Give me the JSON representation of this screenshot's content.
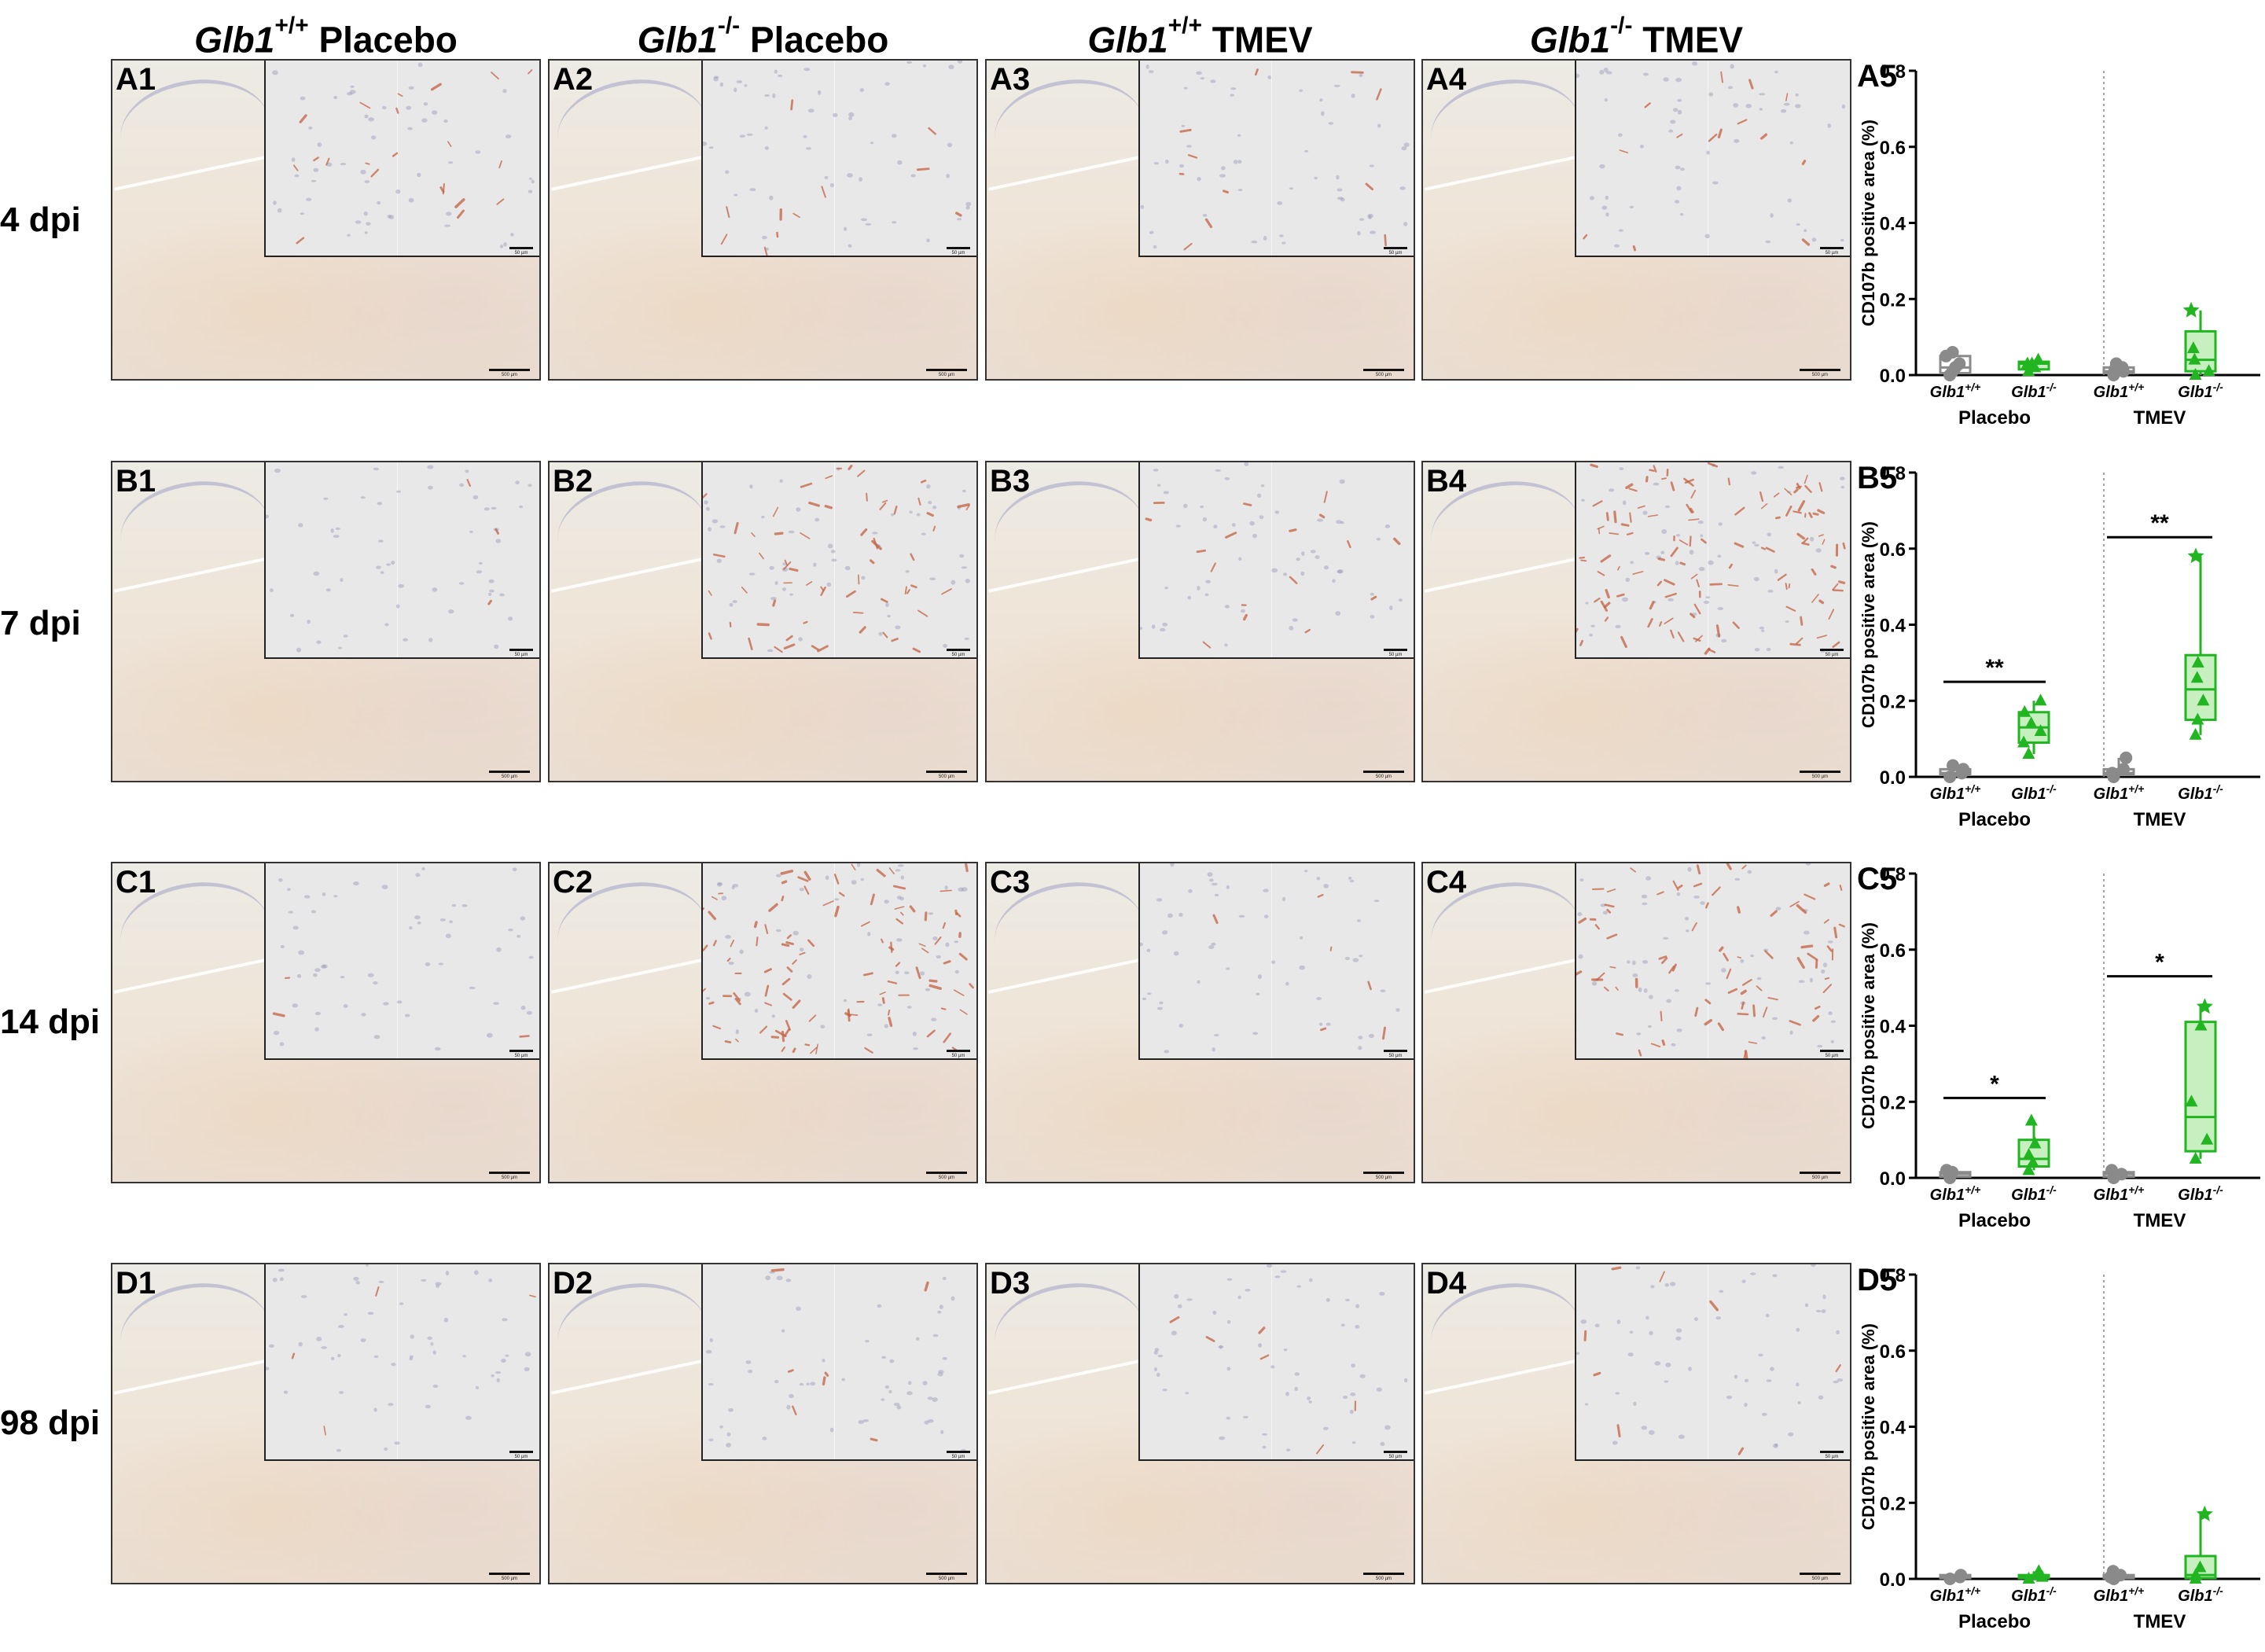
{
  "columns": [
    {
      "gene": "Glb1",
      "genotype": "+/+",
      "group": "Placebo"
    },
    {
      "gene": "Glb1",
      "genotype": "-/-",
      "group": "Placebo"
    },
    {
      "gene": "Glb1",
      "genotype": "+/+",
      "group": "TMEV"
    },
    {
      "gene": "Glb1",
      "genotype": "-/-",
      "group": "TMEV"
    }
  ],
  "rows": [
    {
      "label": "4 dpi",
      "panels": [
        "A1",
        "A2",
        "A3",
        "A4"
      ],
      "chart_label": "A5"
    },
    {
      "label": "7 dpi",
      "panels": [
        "B1",
        "B2",
        "B3",
        "B4"
      ],
      "chart_label": "B5"
    },
    {
      "label": "14 dpi",
      "panels": [
        "C1",
        "C2",
        "C3",
        "C4"
      ],
      "chart_label": "C5"
    },
    {
      "label": "98 dpi",
      "panels": [
        "D1",
        "D2",
        "D3",
        "D4"
      ],
      "chart_label": "D5"
    }
  ],
  "scale_bars": {
    "overview": "500 µm",
    "inset": "50 µm"
  },
  "stain_intensity": [
    [
      0.15,
      0.08,
      0.08,
      0.1
    ],
    [
      0.02,
      0.45,
      0.12,
      0.85
    ],
    [
      0.02,
      0.75,
      0.04,
      0.55
    ],
    [
      0.03,
      0.05,
      0.04,
      0.06
    ]
  ],
  "colors": {
    "wildtype": "#8a8a8a",
    "knockout": "#22b522",
    "knockout_fill": "#c7efc0"
  },
  "chart_data": [
    {
      "type": "box",
      "label": "A5",
      "ylabel": "CD107b positive area (%)",
      "ylim": [
        0,
        0.8
      ],
      "yticks": [
        0.0,
        0.2,
        0.4,
        0.6,
        0.8
      ],
      "groups": [
        "Placebo",
        "TMEV"
      ],
      "categories": [
        "Glb1+/+",
        "Glb1-/-",
        "Glb1+/+",
        "Glb1-/-"
      ],
      "series": [
        {
          "group": "Placebo",
          "genotype": "Glb1+/+",
          "min": 0.0,
          "q1": 0.005,
          "median": 0.02,
          "q3": 0.05,
          "max": 0.06,
          "points": [
            0.0,
            0.01,
            0.02,
            0.03,
            0.05,
            0.06
          ]
        },
        {
          "group": "Placebo",
          "genotype": "Glb1-/-",
          "min": 0.01,
          "q1": 0.015,
          "median": 0.03,
          "q3": 0.035,
          "max": 0.04,
          "points": [
            0.01,
            0.02,
            0.03,
            0.03,
            0.04
          ]
        },
        {
          "group": "TMEV",
          "genotype": "Glb1+/+",
          "min": 0.0,
          "q1": 0.005,
          "median": 0.01,
          "q3": 0.02,
          "max": 0.03,
          "points": [
            0.0,
            0.01,
            0.015,
            0.02,
            0.03
          ]
        },
        {
          "group": "TMEV",
          "genotype": "Glb1-/-",
          "min": 0.0,
          "q1": 0.01,
          "median": 0.04,
          "q3": 0.115,
          "max": 0.17,
          "points": [
            0.0,
            0.01,
            0.04,
            0.07,
            0.17
          ]
        }
      ],
      "significance": []
    },
    {
      "type": "box",
      "label": "B5",
      "ylabel": "CD107b positive area (%)",
      "ylim": [
        0,
        0.8
      ],
      "yticks": [
        0.0,
        0.2,
        0.4,
        0.6,
        0.8
      ],
      "groups": [
        "Placebo",
        "TMEV"
      ],
      "categories": [
        "Glb1+/+",
        "Glb1-/-",
        "Glb1+/+",
        "Glb1-/-"
      ],
      "series": [
        {
          "group": "Placebo",
          "genotype": "Glb1+/+",
          "min": 0.0,
          "q1": 0.005,
          "median": 0.01,
          "q3": 0.02,
          "max": 0.03,
          "points": [
            0.0,
            0.01,
            0.015,
            0.02,
            0.03
          ]
        },
        {
          "group": "Placebo",
          "genotype": "Glb1-/-",
          "min": 0.06,
          "q1": 0.09,
          "median": 0.13,
          "q3": 0.17,
          "max": 0.2,
          "points": [
            0.06,
            0.09,
            0.12,
            0.14,
            0.17,
            0.2
          ]
        },
        {
          "group": "TMEV",
          "genotype": "Glb1+/+",
          "min": 0.0,
          "q1": 0.005,
          "median": 0.01,
          "q3": 0.02,
          "max": 0.05,
          "points": [
            0.0,
            0.01,
            0.02,
            0.05
          ]
        },
        {
          "group": "TMEV",
          "genotype": "Glb1-/-",
          "min": 0.11,
          "q1": 0.15,
          "median": 0.23,
          "q3": 0.32,
          "max": 0.58,
          "points": [
            0.11,
            0.15,
            0.2,
            0.26,
            0.3,
            0.58
          ]
        }
      ],
      "significance": [
        {
          "group": "Placebo",
          "text": "**",
          "y": 0.25
        },
        {
          "group": "TMEV",
          "text": "**",
          "y": 0.63
        }
      ]
    },
    {
      "type": "box",
      "label": "C5",
      "ylabel": "CD107b positive area (%)",
      "ylim": [
        0,
        0.8
      ],
      "yticks": [
        0.0,
        0.2,
        0.4,
        0.6,
        0.8
      ],
      "groups": [
        "Placebo",
        "TMEV"
      ],
      "categories": [
        "Glb1+/+",
        "Glb1-/-",
        "Glb1+/+",
        "Glb1-/-"
      ],
      "series": [
        {
          "group": "Placebo",
          "genotype": "Glb1+/+",
          "min": 0.0,
          "q1": 0.003,
          "median": 0.01,
          "q3": 0.015,
          "max": 0.02,
          "points": [
            0.0,
            0.01,
            0.015,
            0.02
          ]
        },
        {
          "group": "Placebo",
          "genotype": "Glb1-/-",
          "min": 0.02,
          "q1": 0.03,
          "median": 0.05,
          "q3": 0.1,
          "max": 0.15,
          "points": [
            0.02,
            0.04,
            0.06,
            0.09,
            0.15
          ]
        },
        {
          "group": "TMEV",
          "genotype": "Glb1+/+",
          "min": 0.0,
          "q1": 0.003,
          "median": 0.01,
          "q3": 0.015,
          "max": 0.02,
          "points": [
            0.0,
            0.01,
            0.02
          ]
        },
        {
          "group": "TMEV",
          "genotype": "Glb1-/-",
          "min": 0.05,
          "q1": 0.07,
          "median": 0.16,
          "q3": 0.41,
          "max": 0.45,
          "points": [
            0.05,
            0.1,
            0.2,
            0.4,
            0.45
          ]
        }
      ],
      "significance": [
        {
          "group": "Placebo",
          "text": "*",
          "y": 0.21
        },
        {
          "group": "TMEV",
          "text": "*",
          "y": 0.53
        }
      ]
    },
    {
      "type": "box",
      "label": "D5",
      "ylabel": "CD107b positive area (%)",
      "ylim": [
        0,
        0.8
      ],
      "yticks": [
        0.0,
        0.2,
        0.4,
        0.6,
        0.8
      ],
      "groups": [
        "Placebo",
        "TMEV"
      ],
      "categories": [
        "Glb1+/+",
        "Glb1-/-",
        "Glb1+/+",
        "Glb1-/-"
      ],
      "series": [
        {
          "group": "Placebo",
          "genotype": "Glb1+/+",
          "min": 0.0,
          "q1": 0.002,
          "median": 0.005,
          "q3": 0.01,
          "max": 0.01,
          "points": [
            0.0,
            0.005,
            0.01
          ]
        },
        {
          "group": "Placebo",
          "genotype": "Glb1-/-",
          "min": 0.0,
          "q1": 0.002,
          "median": 0.005,
          "q3": 0.01,
          "max": 0.02,
          "points": [
            0.0,
            0.005,
            0.01,
            0.02
          ]
        },
        {
          "group": "TMEV",
          "genotype": "Glb1+/+",
          "min": 0.0,
          "q1": 0.002,
          "median": 0.005,
          "q3": 0.01,
          "max": 0.02,
          "points": [
            0.0,
            0.005,
            0.01,
            0.02
          ]
        },
        {
          "group": "TMEV",
          "genotype": "Glb1-/-",
          "min": 0.0,
          "q1": 0.002,
          "median": 0.01,
          "q3": 0.06,
          "max": 0.17,
          "points": [
            0.0,
            0.01,
            0.03,
            0.17
          ]
        }
      ],
      "significance": []
    }
  ]
}
